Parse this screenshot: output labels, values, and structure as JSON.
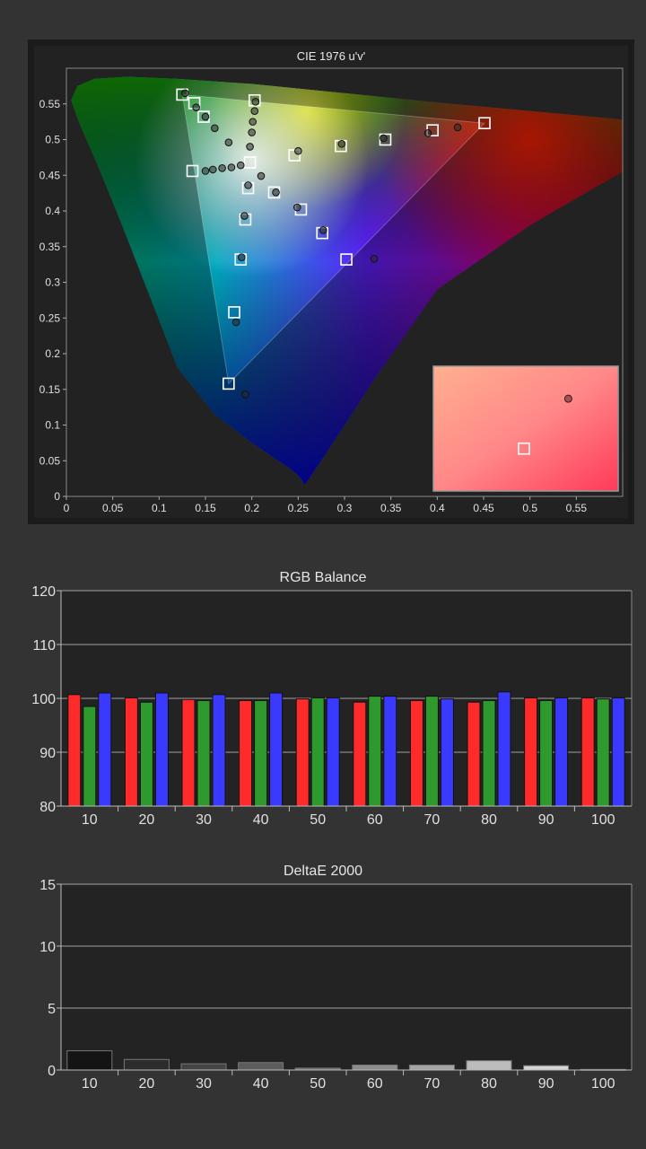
{
  "chart_data": [
    {
      "type": "scatter",
      "title": "CIE 1976 u'v'",
      "xlim": [
        0,
        0.6
      ],
      "ylim": [
        0,
        0.6
      ],
      "x_ticks": [
        "0",
        "0.05",
        "0.1",
        "0.15",
        "0.2",
        "0.25",
        "0.3",
        "0.35",
        "0.4",
        "0.45",
        "0.5",
        "0.55"
      ],
      "y_ticks": [
        "0",
        "0.05",
        "0.1",
        "0.15",
        "0.2",
        "0.25",
        "0.3",
        "0.35",
        "0.4",
        "0.45",
        "0.5",
        "0.55"
      ],
      "gamut_primaries": {
        "red": [
          0.451,
          0.523
        ],
        "green": [
          0.125,
          0.563
        ],
        "blue": [
          0.175,
          0.158
        ],
        "white": [
          0.198,
          0.468
        ]
      },
      "series": [
        {
          "marker": "square",
          "points": [
            [
              0.125,
              0.563
            ],
            [
              0.138,
              0.551
            ],
            [
              0.148,
              0.532
            ],
            [
              0.136,
              0.456
            ],
            [
              0.198,
              0.468
            ],
            [
              0.203,
              0.555
            ],
            [
              0.196,
              0.432
            ],
            [
              0.193,
              0.388
            ],
            [
              0.188,
              0.332
            ],
            [
              0.181,
              0.258
            ],
            [
              0.175,
              0.158
            ],
            [
              0.224,
              0.426
            ],
            [
              0.246,
              0.478
            ],
            [
              0.253,
              0.402
            ],
            [
              0.276,
              0.369
            ],
            [
              0.296,
              0.491
            ],
            [
              0.302,
              0.332
            ],
            [
              0.344,
              0.5
            ],
            [
              0.395,
              0.513
            ],
            [
              0.451,
              0.523
            ]
          ]
        },
        {
          "marker": "circle",
          "points": [
            [
              0.128,
              0.565
            ],
            [
              0.14,
              0.545
            ],
            [
              0.15,
              0.532
            ],
            [
              0.16,
              0.516
            ],
            [
              0.175,
              0.496
            ],
            [
              0.198,
              0.49
            ],
            [
              0.2,
              0.51
            ],
            [
              0.201,
              0.525
            ],
            [
              0.203,
              0.54
            ],
            [
              0.204,
              0.553
            ],
            [
              0.15,
              0.456
            ],
            [
              0.158,
              0.458
            ],
            [
              0.168,
              0.46
            ],
            [
              0.178,
              0.461
            ],
            [
              0.188,
              0.464
            ],
            [
              0.196,
              0.436
            ],
            [
              0.192,
              0.393
            ],
            [
              0.189,
              0.335
            ],
            [
              0.183,
              0.244
            ],
            [
              0.193,
              0.143
            ],
            [
              0.21,
              0.449
            ],
            [
              0.226,
              0.426
            ],
            [
              0.249,
              0.405
            ],
            [
              0.25,
              0.484
            ],
            [
              0.277,
              0.373
            ],
            [
              0.297,
              0.494
            ],
            [
              0.332,
              0.333
            ],
            [
              0.342,
              0.502
            ],
            [
              0.39,
              0.509
            ],
            [
              0.422,
              0.517
            ]
          ]
        }
      ],
      "inset": {
        "marker_square": [
          0.49,
          0.34
        ],
        "marker_circle": [
          0.73,
          0.74
        ]
      }
    },
    {
      "type": "bar",
      "title": "RGB Balance",
      "categories": [
        "10",
        "20",
        "30",
        "40",
        "50",
        "60",
        "70",
        "80",
        "90",
        "100"
      ],
      "ylim": [
        80,
        120
      ],
      "y_ticks": [
        "80",
        "90",
        "100",
        "110",
        "120"
      ],
      "series": [
        {
          "color": "#ff2a2a",
          "values": [
            100.7,
            100.1,
            99.8,
            99.6,
            99.9,
            99.3,
            99.6,
            99.3,
            100.1,
            100.1
          ]
        },
        {
          "color": "#2e9a2e",
          "values": [
            98.5,
            99.3,
            99.6,
            99.6,
            100.1,
            100.4,
            100.4,
            99.6,
            99.6,
            99.9
          ]
        },
        {
          "color": "#3a3aff",
          "values": [
            101.0,
            101.0,
            100.7,
            101.0,
            100.1,
            100.4,
            99.9,
            101.2,
            100.1,
            100.1
          ]
        }
      ]
    },
    {
      "type": "bar",
      "title": "DeltaE 2000",
      "categories": [
        "10",
        "20",
        "30",
        "40",
        "50",
        "60",
        "70",
        "80",
        "90",
        "100"
      ],
      "ylim": [
        0,
        15
      ],
      "y_ticks": [
        "0",
        "5",
        "10",
        "15"
      ],
      "values": [
        1.55,
        0.85,
        0.5,
        0.6,
        0.15,
        0.4,
        0.4,
        0.75,
        0.35,
        0.05
      ]
    }
  ]
}
